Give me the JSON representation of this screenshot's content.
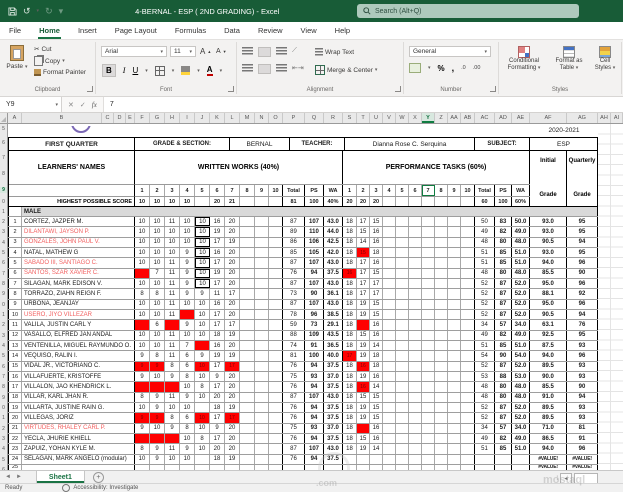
{
  "titlebar": {
    "title": "4-BERNAL - ESP ( 2ND GRADING) - Excel",
    "search_placeholder": "Search (Alt+Q)"
  },
  "menu": {
    "tabs": [
      "File",
      "Home",
      "Insert",
      "Page Layout",
      "Formulas",
      "Data",
      "Review",
      "View",
      "Help"
    ],
    "active": "Home"
  },
  "ribbon": {
    "clipboard": {
      "paste": "Paste",
      "cut": "Cut",
      "copy": "Copy",
      "format_painter": "Format Painter",
      "group": "Clipboard"
    },
    "font": {
      "family": "Arial",
      "size": "11",
      "bold": "B",
      "italic": "I",
      "underline": "U",
      "grow": "A",
      "shrink": "A",
      "color_a": "A",
      "group": "Font"
    },
    "alignment": {
      "wrap": "Wrap Text",
      "merge": "Merge & Center",
      "group": "Alignment"
    },
    "number": {
      "format": "General",
      "percent": "%",
      "comma": ",",
      "inc_dec": [
        ".0",
        ".00"
      ],
      "group": "Number"
    },
    "styles": {
      "conditional": "Conditional Formatting",
      "format_table": "Format as Table",
      "cell_styles": "Cell Styles",
      "group": "Styles"
    }
  },
  "formula_bar": {
    "name_box": "Y9",
    "fx": "fx",
    "value": "7"
  },
  "columns": {
    "letters": [
      "A",
      "B",
      "C",
      "D",
      "E",
      "F",
      "G",
      "H",
      "I",
      "J",
      "K",
      "L",
      "M",
      "N",
      "O",
      "P",
      "Q",
      "R",
      "S",
      "T",
      "U",
      "V",
      "W",
      "X",
      "Y",
      "Z",
      "AA",
      "AB",
      "AC",
      "AD",
      "AE",
      "AF",
      "AG",
      "AH",
      "AI"
    ]
  },
  "table": {
    "year": "2020-2021",
    "info": {
      "quarter": "FIRST QUARTER",
      "grade_section_label": "GRADE & SECTION:",
      "section": "BERNAL",
      "teacher_label": "TEACHER:",
      "teacher": "Dianna Rose C. Serquina",
      "subject_label": "SUBJECT:",
      "subject": "ESP"
    },
    "headers": {
      "learners": "LEARNERS' NAMES",
      "ww": "WRITTEN WORKS (40%)",
      "pt": "PERFORMANCE TASKS (60%)",
      "initial1": "Initial",
      "initial2": "Grade",
      "quarterly1": "Quarterly",
      "quarterly2": "Grade"
    },
    "sub": {
      "cols": [
        "1",
        "2",
        "3",
        "4",
        "5",
        "6",
        "7",
        "8",
        "9",
        "10"
      ],
      "total": "Total",
      "ps": "PS",
      "wa": "WA"
    },
    "hps": {
      "label": "HIGHEST POSSIBLE SCORE",
      "ww": [
        "10",
        "10",
        "10",
        "10",
        "",
        "20",
        "21",
        "",
        "",
        ""
      ],
      "ww_total": "81",
      "ww_ps": "100",
      "ww_wa": "40%",
      "pt": [
        "20",
        "20",
        "20",
        "",
        "",
        "",
        "",
        "",
        "",
        ""
      ],
      "pt_total": "60",
      "pt_ps": "100",
      "pt_wa": "60%"
    },
    "group_label": "MALE",
    "students": [
      {
        "n": "1",
        "name": "CORTEZ, JAZPER M.",
        "r": false,
        "b5": true,
        "w": [
          "10",
          "10",
          "11",
          "10",
          "10",
          "16",
          "20",
          "",
          "",
          ""
        ],
        "wT": "87",
        "wP": "107",
        "wW": "43.0",
        "p": [
          "18",
          "17",
          "15",
          "",
          "",
          "",
          "",
          "",
          "",
          ""
        ],
        "pT": "50",
        "pP": "83",
        "pW": "50.0",
        "ig": "93.0",
        "qg": "95"
      },
      {
        "n": "2",
        "name": "DILANTAWI, JAYSON P.",
        "r": true,
        "b5": true,
        "w": [
          "10",
          "10",
          "10",
          "10",
          "10",
          "19",
          "20",
          "",
          "",
          ""
        ],
        "wT": "89",
        "wP": "110",
        "wW": "44.0",
        "p": [
          "18",
          "15",
          "16",
          "",
          "",
          "",
          "",
          "",
          "",
          ""
        ],
        "pT": "49",
        "pP": "82",
        "pW": "49.0",
        "ig": "93.0",
        "qg": "95"
      },
      {
        "n": "3",
        "name": "GONZALES, JOHN PAUL V.",
        "r": true,
        "b5": true,
        "w": [
          "10",
          "10",
          "10",
          "10",
          "10",
          "17",
          "19",
          "",
          "",
          ""
        ],
        "wT": "86",
        "wP": "106",
        "wW": "42.5",
        "p": [
          "18",
          "14",
          "16",
          "",
          "",
          "",
          "",
          "",
          "",
          ""
        ],
        "pT": "48",
        "pP": "80",
        "pW": "48.0",
        "ig": "90.5",
        "qg": "94"
      },
      {
        "n": "4",
        "name": "NATAL, MATHEW G",
        "r": false,
        "b5": true,
        "w": [
          "10",
          "10",
          "10",
          "9",
          "10",
          "16",
          "20",
          "",
          "",
          ""
        ],
        "wT": "85",
        "wP": "105",
        "wW": "42.0",
        "p": [
          "18",
          "R15",
          "18",
          "",
          "",
          "",
          "",
          "",
          "",
          ""
        ],
        "pT": "51",
        "pP": "85",
        "pW": "51.0",
        "ig": "93.0",
        "qg": "95"
      },
      {
        "n": "5",
        "name": "SABADO III, SANTIAGO C.",
        "r": true,
        "b5": true,
        "w": [
          "10",
          "10",
          "11",
          "9",
          "10",
          "17",
          "20",
          "",
          "",
          ""
        ],
        "wT": "87",
        "wP": "107",
        "wW": "43.0",
        "p": [
          "18",
          "17",
          "16",
          "",
          "",
          "",
          "",
          "",
          "",
          ""
        ],
        "pT": "51",
        "pP": "85",
        "pW": "51.0",
        "ig": "94.0",
        "qg": "96"
      },
      {
        "n": "6",
        "name": "SANTOS, SZAR XAVIER C.",
        "r": true,
        "b5": true,
        "w": [
          "R",
          "7",
          "11",
          "9",
          "10",
          "19",
          "20",
          "",
          "",
          ""
        ],
        "wT": "76",
        "wP": "94",
        "wW": "37.5",
        "p": [
          "R16",
          "17",
          "15",
          "",
          "",
          "",
          "",
          "",
          "",
          ""
        ],
        "pT": "48",
        "pP": "80",
        "pW": "48.0",
        "ig": "85.5",
        "qg": "90"
      },
      {
        "n": "7",
        "name": "SILAGAN, MARK EDISON V.",
        "r": false,
        "b5": true,
        "w": [
          "10",
          "10",
          "11",
          "9",
          "10",
          "17",
          "20",
          "",
          "",
          ""
        ],
        "wT": "87",
        "wP": "107",
        "wW": "43.0",
        "p": [
          "18",
          "17",
          "17",
          "",
          "",
          "",
          "",
          "",
          "",
          ""
        ],
        "pT": "52",
        "pP": "87",
        "pW": "52.0",
        "ig": "95.0",
        "qg": "96"
      },
      {
        "n": "8",
        "name": "TORRAZO, ZIAHN REIGN F.",
        "r": false,
        "w": [
          "8",
          "8",
          "11",
          "9",
          "9",
          "11",
          "17",
          "",
          "",
          ""
        ],
        "wT": "73",
        "wP": "90",
        "wW": "36.1",
        "p": [
          "18",
          "17",
          "17",
          "",
          "",
          "",
          "",
          "",
          "",
          ""
        ],
        "pT": "52",
        "pP": "87",
        "pW": "52.0",
        "ig": "88.1",
        "qg": "92"
      },
      {
        "n": "9",
        "name": "URBONA, JEANJAY",
        "r": false,
        "w": [
          "10",
          "10",
          "11",
          "10",
          "10",
          "16",
          "20",
          "",
          "",
          ""
        ],
        "wT": "87",
        "wP": "107",
        "wW": "43.0",
        "p": [
          "18",
          "19",
          "15",
          "",
          "",
          "",
          "",
          "",
          "",
          ""
        ],
        "pT": "52",
        "pP": "87",
        "pW": "52.0",
        "ig": "95.0",
        "qg": "96"
      },
      {
        "n": "10",
        "name": "USERO, JIYO VILLEZAR",
        "r": true,
        "w": [
          "10",
          "10",
          "11",
          "R",
          "10",
          "17",
          "20",
          "",
          "",
          ""
        ],
        "wT": "78",
        "wP": "96",
        "wW": "38.5",
        "p": [
          "18",
          "19",
          "15",
          "",
          "",
          "",
          "",
          "",
          "",
          ""
        ],
        "pT": "52",
        "pP": "87",
        "pW": "52.0",
        "ig": "90.5",
        "qg": "94"
      },
      {
        "n": "11",
        "name": "VALILA, JUSTIN CARL Y",
        "r": false,
        "w": [
          "R",
          "6",
          "R",
          "9",
          "10",
          "17",
          "17",
          "",
          "",
          ""
        ],
        "wT": "59",
        "wP": "73",
        "wW": "29.1",
        "p": [
          "18",
          "R",
          "16",
          "",
          "",
          "",
          "",
          "",
          "",
          ""
        ],
        "pT": "34",
        "pP": "57",
        "pW": "34.0",
        "ig": "63.1",
        "qg": "76"
      },
      {
        "n": "12",
        "name": "VASALLO, ELFRED JAN ANDAL",
        "r": false,
        "w": [
          "10",
          "10",
          "11",
          "10",
          "10",
          "18",
          "19",
          "",
          "",
          ""
        ],
        "wT": "88",
        "wP": "109",
        "wW": "43.5",
        "p": [
          "18",
          "15",
          "16",
          "",
          "",
          "",
          "",
          "",
          "",
          ""
        ],
        "pT": "49",
        "pP": "82",
        "pW": "49.0",
        "ig": "92.5",
        "qg": "95"
      },
      {
        "n": "13",
        "name": "VENTENILLA, MIGUEL RAYMUNDO O.",
        "r": false,
        "w": [
          "10",
          "10",
          "11",
          "7",
          "R",
          "16",
          "20",
          "",
          "",
          ""
        ],
        "wT": "74",
        "wP": "91",
        "wW": "36.5",
        "p": [
          "18",
          "19",
          "14",
          "",
          "",
          "",
          "",
          "",
          "",
          ""
        ],
        "pT": "51",
        "pP": "85",
        "pW": "51.0",
        "ig": "87.5",
        "qg": "93"
      },
      {
        "n": "14",
        "name": "VEQUISO, RALIN I.",
        "r": false,
        "w": [
          "9",
          "8",
          "11",
          "6",
          "9",
          "19",
          "19",
          "",
          "",
          ""
        ],
        "wT": "81",
        "wP": "100",
        "wW": "40.0",
        "p": [
          "R17",
          "19",
          "18",
          "",
          "",
          "",
          "",
          "",
          "",
          ""
        ],
        "pT": "54",
        "pP": "90",
        "pW": "54.0",
        "ig": "94.0",
        "qg": "96"
      },
      {
        "n": "15",
        "name": "VIDAL JR., VICTORIANO C.",
        "r": false,
        "w": [
          "R9",
          "R9",
          "8",
          "6",
          "R10",
          "17",
          "R17",
          "",
          "",
          ""
        ],
        "wT": "76",
        "wP": "94",
        "wW": "37.5",
        "p": [
          "18",
          "R16",
          "18",
          "",
          "",
          "",
          "",
          "",
          "",
          ""
        ],
        "pT": "52",
        "pP": "87",
        "pW": "52.0",
        "ig": "89.5",
        "qg": "93"
      },
      {
        "n": "16",
        "name": "VILLAFUERTE, KRISTOFFE",
        "r": false,
        "w": [
          "9",
          "10",
          "9",
          "8",
          "10",
          "9",
          "20",
          "",
          "",
          ""
        ],
        "wT": "75",
        "wP": "93",
        "wW": "37.0",
        "p": [
          "18",
          "19",
          "16",
          "",
          "",
          "",
          "",
          "",
          "",
          ""
        ],
        "pT": "53",
        "pP": "88",
        "pW": "53.0",
        "ig": "90.0",
        "qg": "93"
      },
      {
        "n": "17",
        "name": "VILLALON, JAO KHENDRICK L.",
        "r": false,
        "w": [
          "R",
          "R",
          "R",
          "10",
          "8",
          "17",
          "20",
          "",
          "",
          ""
        ],
        "wT": "76",
        "wP": "94",
        "wW": "37.5",
        "p": [
          "18",
          "R16",
          "14",
          "",
          "",
          "",
          "",
          "",
          "",
          ""
        ],
        "pT": "48",
        "pP": "80",
        "pW": "48.0",
        "ig": "85.5",
        "qg": "90"
      },
      {
        "n": "18",
        "name": "VILLAR, KARL JHAN R.",
        "r": false,
        "w": [
          "8",
          "9",
          "11",
          "9",
          "10",
          "20",
          "20",
          "",
          "",
          ""
        ],
        "wT": "87",
        "wP": "107",
        "wW": "43.0",
        "p": [
          "18",
          "15",
          "15",
          "",
          "",
          "",
          "",
          "",
          "",
          ""
        ],
        "pT": "48",
        "pP": "80",
        "pW": "48.0",
        "ig": "91.0",
        "qg": "94"
      },
      {
        "n": "19",
        "name": "VILLARTA, JUSTINE RAIN G.",
        "r": false,
        "w": [
          "10",
          "9",
          "10",
          "10",
          "",
          "18",
          "19",
          "",
          "",
          ""
        ],
        "wT": "76",
        "wP": "94",
        "wW": "37.5",
        "p": [
          "18",
          "19",
          "15",
          "",
          "",
          "",
          "",
          "",
          "",
          ""
        ],
        "pT": "52",
        "pP": "87",
        "pW": "52.0",
        "ig": "89.5",
        "qg": "93"
      },
      {
        "n": "20",
        "name": "VILLEGAS, JORIZ",
        "r": false,
        "w": [
          "R9",
          "R9",
          "8",
          "6",
          "R10",
          "17",
          "R17",
          "",
          "",
          ""
        ],
        "wT": "76",
        "wP": "94",
        "wW": "37.5",
        "p": [
          "18",
          "19",
          "15",
          "",
          "",
          "",
          "",
          "",
          "",
          ""
        ],
        "pT": "52",
        "pP": "87",
        "pW": "52.0",
        "ig": "89.5",
        "qg": "93"
      },
      {
        "n": "21",
        "name": "VIRTUDES, RHALEY CARL P.",
        "r": true,
        "w": [
          "9",
          "10",
          "9",
          "8",
          "10",
          "9",
          "20",
          "",
          "",
          ""
        ],
        "wT": "75",
        "wP": "93",
        "wW": "37.0",
        "p": [
          "18",
          "R",
          "16",
          "",
          "",
          "",
          "",
          "",
          "",
          ""
        ],
        "pT": "34",
        "pP": "57",
        "pW": "34.0",
        "ig": "71.0",
        "qg": "81"
      },
      {
        "n": "22",
        "name": "YECLA, JHURIE KHIELL",
        "r": false,
        "w": [
          "R",
          "R",
          "R",
          "10",
          "8",
          "17",
          "20",
          "",
          "",
          ""
        ],
        "wT": "76",
        "wP": "94",
        "wW": "37.5",
        "p": [
          "18",
          "15",
          "16",
          "",
          "",
          "",
          "",
          "",
          "",
          ""
        ],
        "pT": "49",
        "pP": "82",
        "pW": "49.0",
        "ig": "86.5",
        "qg": "91"
      },
      {
        "n": "23",
        "name": "ZAPUIZ, YOHAN KYLE M.",
        "r": false,
        "w": [
          "8",
          "9",
          "11",
          "9",
          "10",
          "20",
          "20",
          "",
          "",
          ""
        ],
        "wT": "87",
        "wP": "107",
        "wW": "43.0",
        "p": [
          "18",
          "19",
          "14",
          "",
          "",
          "",
          "",
          "",
          "",
          ""
        ],
        "pT": "51",
        "pP": "85",
        "pW": "51.0",
        "ig": "94.0",
        "qg": "96"
      },
      {
        "n": "24",
        "name": "SELAGAN, MARK ANGELO (modular)",
        "r": false,
        "w": [
          "10",
          "9",
          "10",
          "10",
          "",
          "18",
          "19",
          "",
          "",
          ""
        ],
        "wT": "76",
        "wP": "94",
        "wW": "37.5",
        "p": [
          "",
          "",
          "",
          "",
          "",
          "",
          "",
          "",
          "",
          ""
        ],
        "pT": "",
        "pP": "",
        "pW": "",
        "ig": "#VALUE!",
        "qg": "#VALUE!"
      },
      {
        "n": "25",
        "name": "",
        "r": false,
        "w": [
          "",
          "",
          "",
          "",
          "",
          "",
          "",
          "",
          "",
          ""
        ],
        "wT": "",
        "wP": "",
        "wW": "",
        "p": [
          "",
          "",
          "",
          "",
          "",
          "",
          "",
          "",
          "",
          ""
        ],
        "pT": "",
        "pP": "",
        "pW": "",
        "ig": "#VALUE!",
        "qg": "#VALUE!"
      }
    ]
  },
  "sheet_tabs": {
    "active": "Sheet1"
  },
  "status_bar": {
    "ready": "Ready",
    "accessibility": "Accessibility: Investigate"
  },
  "watermark": {
    "text": "mostaql",
    "text2": ".com"
  }
}
